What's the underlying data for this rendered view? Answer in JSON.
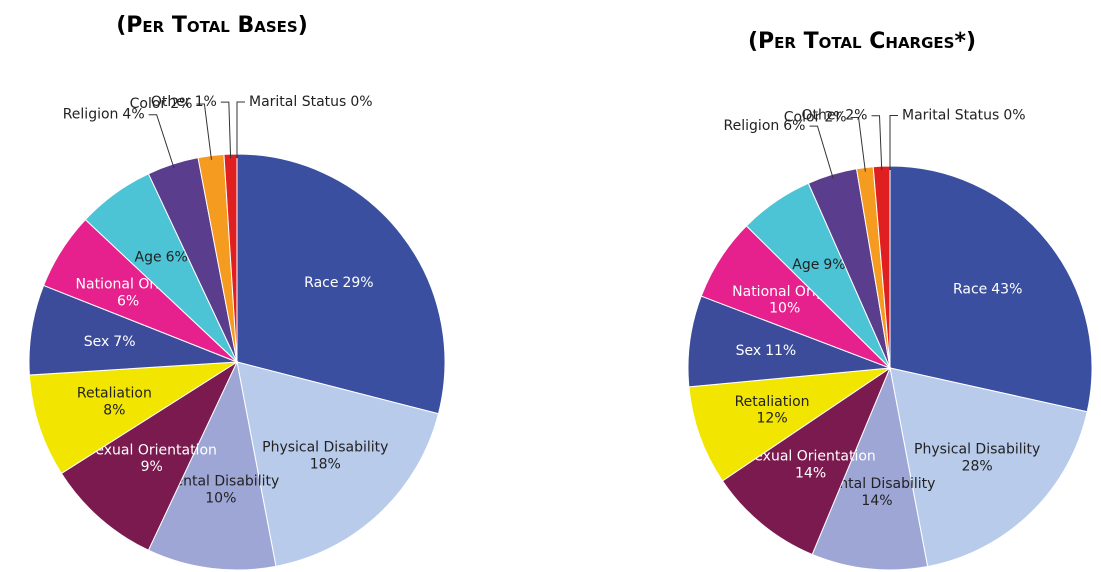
{
  "chart_data": [
    {
      "type": "pie",
      "title": "(Per Total Bases)",
      "categories": [
        "Race",
        "Physical Disability",
        "Mental Disability",
        "Sexual Orientation",
        "Retaliation",
        "Sex",
        "National Origin",
        "Age",
        "Religion",
        "Color",
        "Other",
        "Marital Status"
      ],
      "values": [
        29,
        18,
        10,
        9,
        8,
        7,
        6,
        6,
        4,
        2,
        1,
        0
      ],
      "value_labels": [
        "29%",
        "18%",
        "10%",
        "9%",
        "8%",
        "7%",
        "6%",
        "6%",
        "4%",
        "2%",
        "1%",
        "0%"
      ],
      "colors": [
        "#3a4fa0",
        "#b8cbea",
        "#9ea6d6",
        "#7a1a4e",
        "#f2e600",
        "#3d4c9a",
        "#e6208c",
        "#4cc4d6",
        "#5a3d8c",
        "#f59b20",
        "#e02020",
        "#a0d8a0"
      ]
    },
    {
      "type": "pie",
      "title": "(Per Total Charges*)",
      "categories": [
        "Race",
        "Physical Disability",
        "Mental Disability",
        "Sexual Orientation",
        "Retaliation",
        "Sex",
        "National Origin",
        "Age",
        "Religion",
        "Color",
        "Other",
        "Marital Status"
      ],
      "values": [
        43,
        28,
        14,
        14,
        12,
        11,
        10,
        9,
        6,
        2,
        2,
        0
      ],
      "value_labels": [
        "43%",
        "28%",
        "14%",
        "14%",
        "12%",
        "11%",
        "10%",
        "9%",
        "6%",
        "2%",
        "2%",
        "0%"
      ],
      "colors": [
        "#3a4fa0",
        "#b8cbea",
        "#9ea6d6",
        "#7a1a4e",
        "#f2e600",
        "#3d4c9a",
        "#e6208c",
        "#4cc4d6",
        "#5a3d8c",
        "#f59b20",
        "#e02020",
        "#a0d8a0"
      ]
    }
  ]
}
